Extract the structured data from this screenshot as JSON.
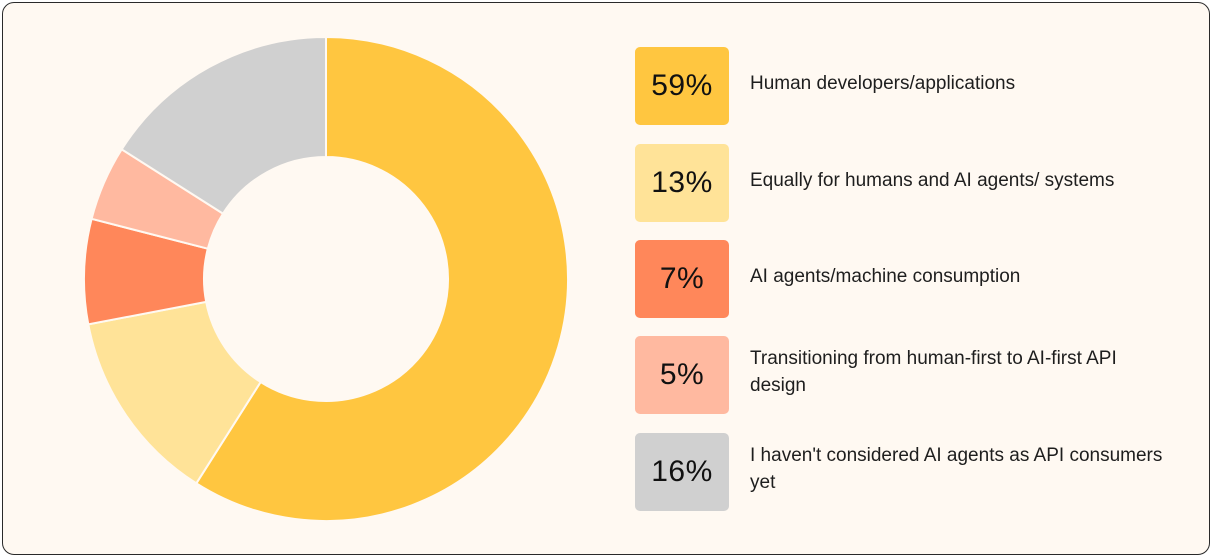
{
  "chart_data": {
    "type": "pie",
    "variant": "donut",
    "title": "",
    "categories": [
      "Human developers/applications",
      "Equally for humans and AI agents/ systems",
      "AI agents/machine consumption",
      "Transitioning from human-first to AI-first API design",
      "I haven't considered AI agents as API consumers yet"
    ],
    "values": [
      59,
      13,
      7,
      5,
      16
    ],
    "value_labels": [
      "59%",
      "13%",
      "7%",
      "5%",
      "16%"
    ],
    "colors": [
      "#ffc640",
      "#ffe398",
      "#ff875a",
      "#ffb9a0",
      "#d0d0d0"
    ],
    "legend_placement": "right"
  },
  "legend": {
    "items": [
      {
        "value": "59%",
        "label": "Human developers/applications",
        "color": "#ffc640"
      },
      {
        "value": "13%",
        "label": "Equally for humans and AI agents/ systems",
        "color": "#ffe398"
      },
      {
        "value": "7%",
        "label": "AI agents/machine consumption",
        "color": "#ff875a"
      },
      {
        "value": "5%",
        "label": "Transitioning from human-first to AI-first API design",
        "color": "#ffb9a0"
      },
      {
        "value": "16%",
        "label": "I haven't considered AI agents as API consumers yet",
        "color": "#d0d0d0"
      }
    ]
  }
}
